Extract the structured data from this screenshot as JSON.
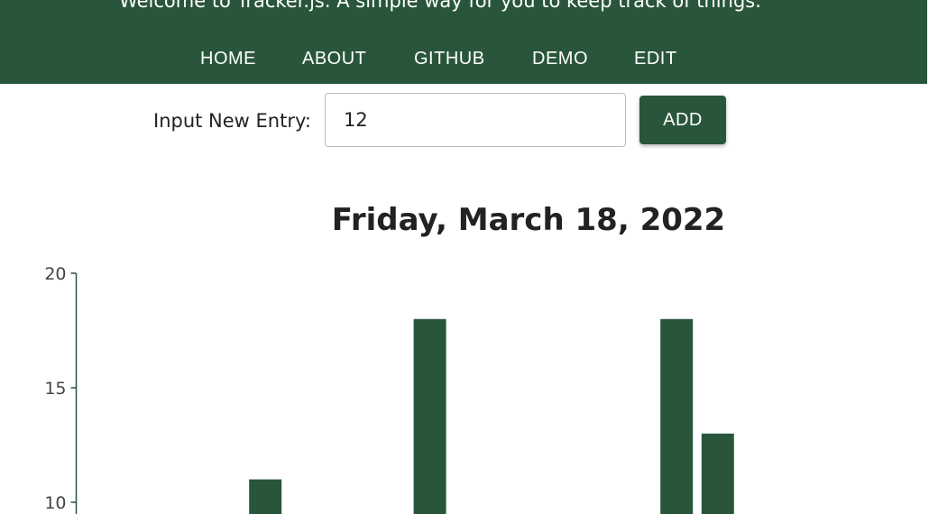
{
  "header": {
    "tagline": "Welcome to Tracker.js. A simple way for you to keep track of things.",
    "nav": [
      "HOME",
      "ABOUT",
      "GITHUB",
      "DEMO",
      "EDIT"
    ]
  },
  "entry": {
    "label": "Input New Entry:",
    "value": "12",
    "add_label": "ADD"
  },
  "date_title": "Friday, March 18, 2022",
  "colors": {
    "primary": "#29563a",
    "text": "#222222"
  },
  "chart_data": {
    "type": "bar",
    "ylim": [
      0,
      20
    ],
    "yticks": [
      20,
      15,
      10
    ],
    "values": [
      null,
      null,
      null,
      null,
      11,
      null,
      null,
      null,
      18,
      null,
      null,
      null,
      null,
      null,
      18,
      13
    ],
    "xlabel": "",
    "ylabel": ""
  }
}
